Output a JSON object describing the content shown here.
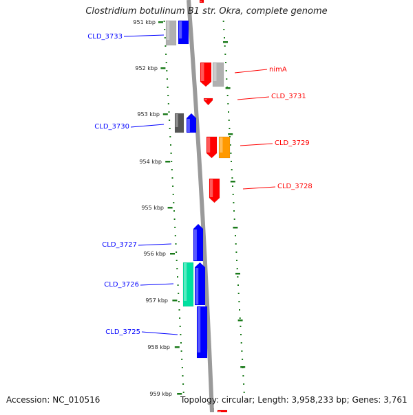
{
  "title": "Clostridium botulinum B1 str. Okra, complete genome",
  "footer": {
    "accession": "Accession: NC_010516",
    "topology": "Topology: circular; Length: 3,958,233 bp; Genes: 3,761"
  },
  "ticks": [
    {
      "label": "951 kbp"
    },
    {
      "label": "952 kbp"
    },
    {
      "label": "953 kbp"
    },
    {
      "label": "954 kbp"
    },
    {
      "label": "955 kbp"
    },
    {
      "label": "956 kbp"
    },
    {
      "label": "957 kbp"
    },
    {
      "label": "958 kbp"
    },
    {
      "label": "959 kbp"
    }
  ],
  "genes": [
    {
      "name": "CLD_3733",
      "strand": "reverse",
      "color": "#0000ff"
    },
    {
      "name": "nimA",
      "strand": "forward",
      "color": "#ff0000"
    },
    {
      "name": "CLD_3731",
      "strand": "forward",
      "color": "#ff0000"
    },
    {
      "name": "CLD_3730",
      "strand": "reverse",
      "color": "#0000ff"
    },
    {
      "name": "CLD_3729",
      "strand": "forward",
      "color": "#ff0000"
    },
    {
      "name": "CLD_3728",
      "strand": "forward",
      "color": "#ff0000"
    },
    {
      "name": "CLD_3727",
      "strand": "reverse",
      "color": "#0000ff"
    },
    {
      "name": "CLD_3726",
      "strand": "reverse",
      "color": "#0000ff"
    },
    {
      "name": "CLD_3725",
      "strand": "reverse",
      "color": "#0000ff"
    }
  ],
  "colors": {
    "forward_gene": "#ff0000",
    "reverse_gene": "#0000ff",
    "rna_gray": "#b0b0b0",
    "dark_gray": "#555555",
    "orange": "#ff9900",
    "teal": "#00e0a0",
    "dotted_track": "#1a7a1a",
    "backbone": "#999999"
  }
}
